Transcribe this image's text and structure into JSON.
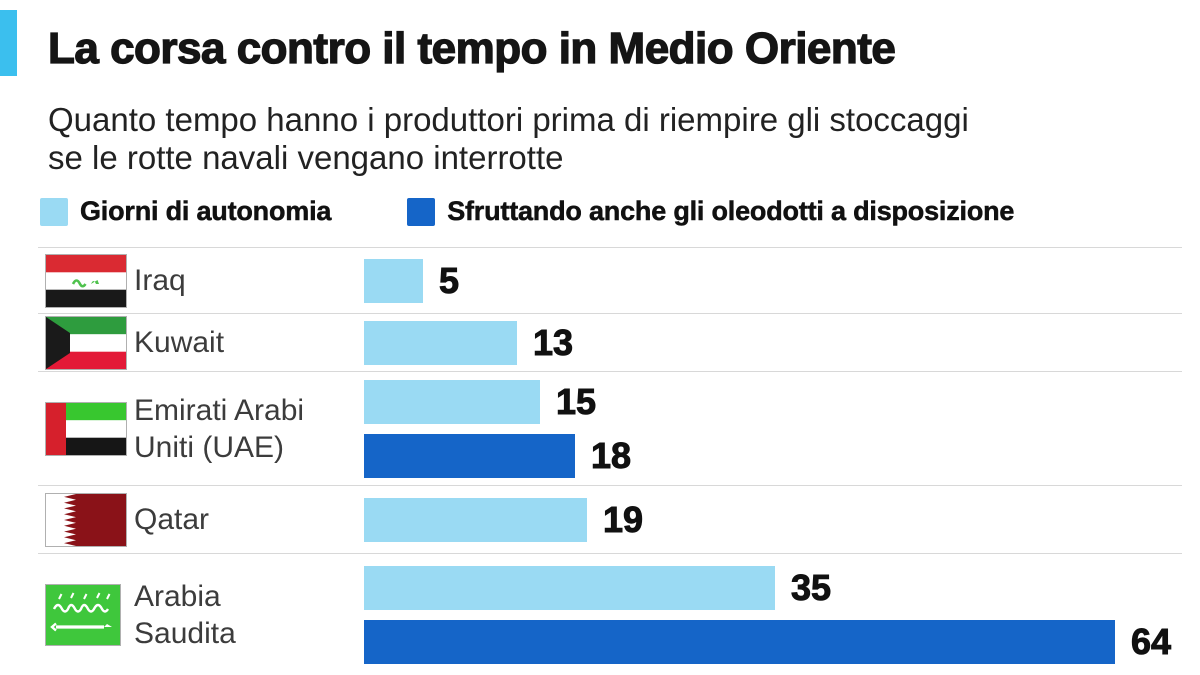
{
  "header": {
    "title": "La corsa contro il tempo in Medio Oriente",
    "subtitle_line1": "Quanto tempo hanno i produttori prima di riempire gli stoccaggi",
    "subtitle_line2": "se le rotte navali vengano interrotte"
  },
  "legend": [
    {
      "label": "Giorni di autonomia",
      "color": "#9ADAF3"
    },
    {
      "label": "Sfruttando anche gli oleodotti a disposizione",
      "color": "#1565C8"
    }
  ],
  "chart_data": {
    "type": "bar",
    "orientation": "horizontal",
    "title": "La corsa contro il tempo in Medio Oriente",
    "subtitle": "Quanto tempo hanno i produttori prima di riempire gli stoccaggi se le rotte navali vengano interrotte",
    "unit": "giorni",
    "xlim": [
      0,
      64
    ],
    "series": [
      {
        "name": "Giorni di autonomia",
        "color": "#9ADAF3"
      },
      {
        "name": "Sfruttando anche gli oleodotti a disposizione",
        "color": "#1565C8"
      }
    ],
    "rows": [
      {
        "country": "Iraq",
        "label_lines": [
          "Iraq"
        ],
        "flag": "iraq",
        "giorni_autonomia": 5,
        "con_oleodotti": null
      },
      {
        "country": "Kuwait",
        "label_lines": [
          "Kuwait"
        ],
        "flag": "kuwait",
        "giorni_autonomia": 13,
        "con_oleodotti": null
      },
      {
        "country": "Emirati Arabi Uniti (UAE)",
        "label_lines": [
          "Emirati Arabi",
          "Uniti (UAE)"
        ],
        "flag": "uae",
        "giorni_autonomia": 15,
        "con_oleodotti": 18
      },
      {
        "country": "Qatar",
        "label_lines": [
          "Qatar"
        ],
        "flag": "qatar",
        "giorni_autonomia": 19,
        "con_oleodotti": null
      },
      {
        "country": "Arabia Saudita",
        "label_lines": [
          "Arabia",
          "Saudita"
        ],
        "flag": "saudi",
        "giorni_autonomia": 35,
        "con_oleodotti": 64
      }
    ]
  },
  "colors": {
    "accent_bar": "#3BBFEE",
    "light_blue": "#9ADAF3",
    "dark_blue": "#1565C8",
    "separator": "#D8D8D8",
    "title_text": "#151515",
    "label_text": "#3C3C3C",
    "value_text": "#111111"
  }
}
